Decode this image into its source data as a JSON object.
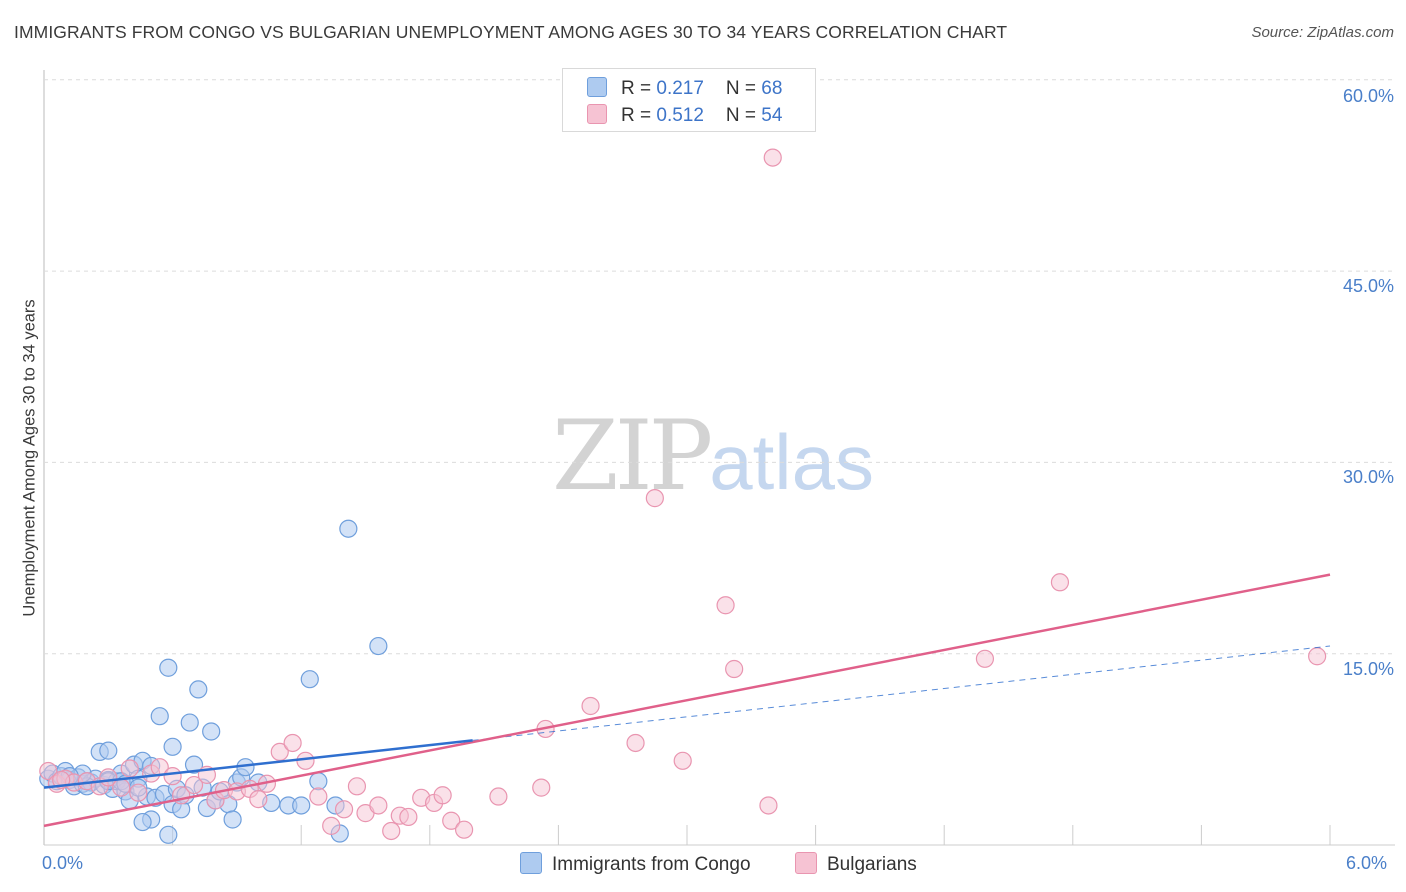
{
  "title": "IMMIGRANTS FROM CONGO VS BULGARIAN UNEMPLOYMENT AMONG AGES 30 TO 34 YEARS CORRELATION CHART",
  "source": "Source: ZipAtlas.com",
  "watermark": {
    "zip": "ZIP",
    "atlas": "atlas"
  },
  "legend": {
    "series1": {
      "r_label": "R = ",
      "r_value": "0.217",
      "n_label": "N = ",
      "n_value": "68"
    },
    "series2": {
      "r_label": "R = ",
      "r_value": "0.512",
      "n_label": "N = ",
      "n_value": "54"
    }
  },
  "colors": {
    "blue_fill": "#aecbf0",
    "blue_stroke": "#6f9fdc",
    "blue_line": "#2f6fcf",
    "pink_fill": "#f6c3d3",
    "pink_stroke": "#e995b0",
    "pink_line": "#e0608a",
    "grid": "#dcdcdc",
    "tick_text": "#4a7fc9"
  },
  "chart_data": {
    "type": "scatter",
    "xlabel": "",
    "ylabel": "Unemployment Among Ages 30 to 34 years",
    "x_tick_labels": [
      "0.0%",
      "6.0%"
    ],
    "y_tick_labels": [
      "15.0%",
      "30.0%",
      "45.0%",
      "60.0%"
    ],
    "xlim": [
      0.0,
      6.0
    ],
    "ylim": [
      0.0,
      61.5
    ],
    "grid": true,
    "legend_position": "top-center",
    "series": [
      {
        "name": "Immigrants from Congo",
        "color": "blue",
        "r": 0.217,
        "n": 68,
        "trend": {
          "x": [
            0.0,
            2.0
          ],
          "y": [
            4.5,
            8.2
          ],
          "extended_x": [
            2.0,
            6.0
          ],
          "extended_y": [
            8.2,
            15.6
          ]
        },
        "points": [
          [
            0.02,
            5.2
          ],
          [
            0.04,
            5.6
          ],
          [
            0.06,
            5.0
          ],
          [
            0.08,
            5.4
          ],
          [
            0.1,
            5.8
          ],
          [
            0.12,
            5.1
          ],
          [
            0.14,
            4.6
          ],
          [
            0.16,
            5.3
          ],
          [
            0.18,
            4.8
          ],
          [
            0.2,
            5.0
          ],
          [
            0.22,
            4.9
          ],
          [
            0.24,
            5.2
          ],
          [
            0.26,
            7.3
          ],
          [
            0.28,
            4.7
          ],
          [
            0.3,
            5.1
          ],
          [
            0.32,
            4.4
          ],
          [
            0.34,
            5.0
          ],
          [
            0.36,
            5.6
          ],
          [
            0.38,
            4.2
          ],
          [
            0.4,
            3.5
          ],
          [
            0.42,
            6.3
          ],
          [
            0.44,
            5.2
          ],
          [
            0.46,
            6.6
          ],
          [
            0.48,
            3.8
          ],
          [
            0.5,
            6.2
          ],
          [
            0.52,
            3.7
          ],
          [
            0.54,
            10.1
          ],
          [
            0.56,
            4.0
          ],
          [
            0.58,
            13.9
          ],
          [
            0.6,
            3.2
          ],
          [
            0.62,
            4.4
          ],
          [
            0.64,
            2.8
          ],
          [
            0.66,
            3.9
          ],
          [
            0.68,
            9.6
          ],
          [
            0.7,
            6.3
          ],
          [
            0.72,
            12.2
          ],
          [
            0.74,
            4.5
          ],
          [
            0.76,
            2.9
          ],
          [
            0.78,
            8.9
          ],
          [
            0.8,
            3.5
          ],
          [
            0.82,
            4.2
          ],
          [
            0.86,
            3.2
          ],
          [
            0.88,
            2.0
          ],
          [
            0.9,
            4.9
          ],
          [
            0.92,
            5.3
          ],
          [
            0.94,
            6.1
          ],
          [
            1.0,
            4.9
          ],
          [
            1.06,
            3.3
          ],
          [
            1.14,
            3.1
          ],
          [
            1.2,
            3.1
          ],
          [
            1.24,
            13.0
          ],
          [
            1.28,
            5.0
          ],
          [
            1.36,
            3.1
          ],
          [
            1.42,
            24.8
          ],
          [
            1.56,
            15.6
          ],
          [
            0.6,
            7.7
          ],
          [
            0.3,
            7.4
          ],
          [
            0.2,
            4.6
          ],
          [
            0.18,
            5.6
          ],
          [
            0.5,
            2.0
          ],
          [
            0.46,
            1.8
          ],
          [
            0.58,
            0.8
          ],
          [
            1.38,
            0.9
          ],
          [
            0.3,
            5.0
          ],
          [
            0.36,
            5.0
          ],
          [
            0.38,
            4.8
          ],
          [
            0.44,
            4.5
          ],
          [
            0.12,
            5.4
          ]
        ]
      },
      {
        "name": "Bulgarians",
        "color": "pink",
        "r": 0.512,
        "n": 54,
        "trend": {
          "x": [
            0.0,
            6.0
          ],
          "y": [
            1.5,
            21.2
          ]
        },
        "points": [
          [
            0.02,
            5.8
          ],
          [
            0.06,
            4.8
          ],
          [
            0.1,
            5.2
          ],
          [
            0.14,
            4.9
          ],
          [
            0.2,
            5.0
          ],
          [
            0.26,
            4.6
          ],
          [
            0.3,
            5.3
          ],
          [
            0.36,
            4.5
          ],
          [
            0.4,
            6.0
          ],
          [
            0.44,
            4.1
          ],
          [
            0.5,
            5.6
          ],
          [
            0.54,
            6.1
          ],
          [
            0.6,
            5.4
          ],
          [
            0.64,
            3.9
          ],
          [
            0.7,
            4.7
          ],
          [
            0.76,
            5.5
          ],
          [
            0.8,
            3.5
          ],
          [
            0.84,
            4.3
          ],
          [
            0.9,
            4.2
          ],
          [
            0.96,
            4.4
          ],
          [
            1.0,
            3.6
          ],
          [
            1.04,
            4.8
          ],
          [
            1.1,
            7.3
          ],
          [
            1.16,
            8.0
          ],
          [
            1.22,
            6.6
          ],
          [
            1.28,
            3.8
          ],
          [
            1.34,
            1.5
          ],
          [
            1.4,
            2.8
          ],
          [
            1.46,
            4.6
          ],
          [
            1.5,
            2.5
          ],
          [
            1.56,
            3.1
          ],
          [
            1.62,
            1.1
          ],
          [
            1.66,
            2.3
          ],
          [
            1.7,
            2.2
          ],
          [
            1.76,
            3.7
          ],
          [
            1.82,
            3.3
          ],
          [
            1.86,
            3.9
          ],
          [
            1.9,
            1.9
          ],
          [
            1.96,
            1.2
          ],
          [
            2.12,
            3.8
          ],
          [
            2.32,
            4.5
          ],
          [
            2.34,
            9.1
          ],
          [
            2.55,
            10.9
          ],
          [
            2.76,
            8.0
          ],
          [
            2.85,
            27.2
          ],
          [
            2.98,
            6.6
          ],
          [
            3.18,
            18.8
          ],
          [
            3.22,
            13.8
          ],
          [
            3.38,
            3.1
          ],
          [
            3.4,
            53.9
          ],
          [
            4.39,
            14.6
          ],
          [
            4.74,
            20.6
          ],
          [
            5.94,
            14.8
          ],
          [
            0.08,
            5.1
          ]
        ]
      }
    ]
  },
  "bottom_legend": [
    "Immigrants from Congo",
    "Bulgarians"
  ]
}
